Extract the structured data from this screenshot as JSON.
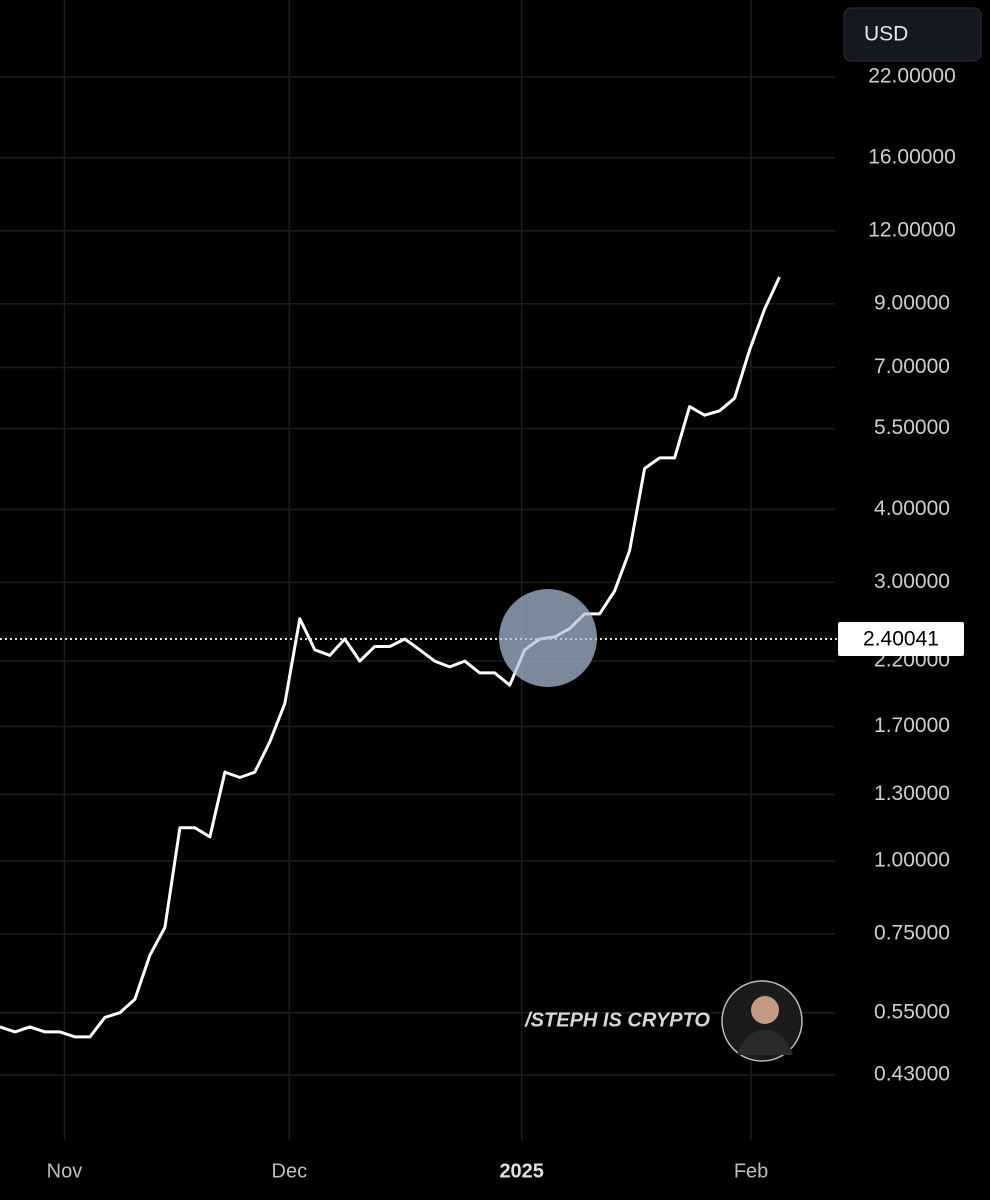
{
  "chart_data": {
    "type": "line",
    "currency": "USD",
    "watermark": "/STEPH IS CRYPTO",
    "log_scale": true,
    "grid": true,
    "color": "#ffffff",
    "values": [
      0.52,
      0.51,
      0.52,
      0.51,
      0.51,
      0.5,
      0.5,
      0.54,
      0.55,
      0.58,
      0.69,
      0.77,
      1.14,
      1.14,
      1.1,
      1.42,
      1.39,
      1.42,
      1.6,
      1.86,
      2.6,
      2.3,
      2.25,
      2.4,
      2.2,
      2.33,
      2.33,
      2.4,
      2.3,
      2.2,
      2.15,
      2.2,
      2.1,
      2.1,
      2.0,
      2.3,
      2.4,
      2.42,
      2.5,
      2.65,
      2.65,
      2.9,
      3.4,
      4.7,
      4.9,
      4.9,
      6.0,
      5.8,
      5.9,
      6.2,
      7.5,
      8.8,
      10.0
    ],
    "current_price": 2.40041,
    "ylim": [
      0.333,
      29.8
    ],
    "yticks": [
      {
        "value": 22,
        "label": "22.00000"
      },
      {
        "value": 16,
        "label": "16.00000"
      },
      {
        "value": 12,
        "label": "12.00000"
      },
      {
        "value": 9,
        "label": "9.00000"
      },
      {
        "value": 7,
        "label": "7.00000"
      },
      {
        "value": 5.5,
        "label": "5.50000"
      },
      {
        "value": 4,
        "label": "4.00000"
      },
      {
        "value": 3,
        "label": "3.00000"
      },
      {
        "value": 2.2,
        "label": "2.20000"
      },
      {
        "value": 1.7,
        "label": "1.70000"
      },
      {
        "value": 1.3,
        "label": "1.30000"
      },
      {
        "value": 1,
        "label": "1.00000"
      },
      {
        "value": 0.75,
        "label": "0.75000"
      },
      {
        "value": 0.55,
        "label": "0.55000"
      },
      {
        "value": 0.43,
        "label": "0.43000"
      }
    ],
    "xlim": [
      0,
      55.7
    ],
    "xticks": [
      {
        "value": 4.3,
        "label": "Nov"
      },
      {
        "value": 19.3,
        "label": "Dec"
      },
      {
        "value": 34.8,
        "label": "2025"
      },
      {
        "value": 50.1,
        "label": "Feb"
      }
    ]
  }
}
